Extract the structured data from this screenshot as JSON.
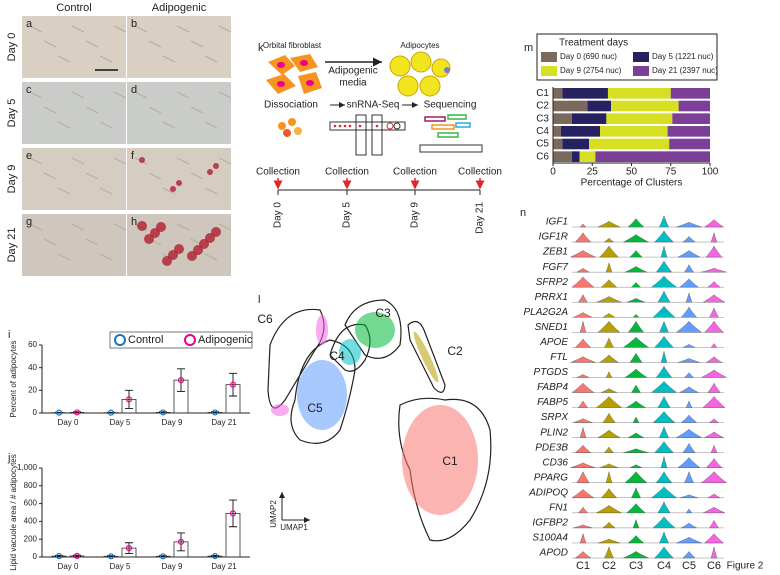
{
  "figure_label": "Figure 2",
  "panel_a_h": {
    "columns": [
      "Control",
      "Adipogenic"
    ],
    "rows": [
      "Day 0",
      "Day 5",
      "Day 9",
      "Day 21"
    ],
    "letters": [
      "a",
      "b",
      "c",
      "d",
      "e",
      "f",
      "g",
      "h"
    ]
  },
  "panel_k": {
    "letter": "k",
    "cells": [
      "Orbital fibroblast",
      "Adipocytes"
    ],
    "media": [
      "Adipogenic",
      "media"
    ],
    "steps": [
      "Dissociation",
      "snRNA-Seq",
      "Sequencing"
    ],
    "collection": [
      "Collection",
      "Collection",
      "Collection",
      "Collection"
    ],
    "days": [
      "Day 0",
      "Day 5",
      "Day 9",
      "Day 21"
    ]
  },
  "panel_l": {
    "letter": "l",
    "clusters": [
      "C1",
      "C2",
      "C3",
      "C4",
      "C5",
      "C6"
    ],
    "axes": [
      "UMAP2",
      "UMAP1"
    ]
  },
  "panel_n": {
    "letter": "n",
    "genes": [
      "IGF1",
      "IGF1R",
      "ZEB1",
      "FGF7",
      "SFRP2",
      "PRRX1",
      "PLA2G2A",
      "SNED1",
      "APOE",
      "FTL",
      "PTGDS",
      "FABP4",
      "FABP5",
      "SRPX",
      "PLIN2",
      "PDE3B",
      "CD36",
      "PPARG",
      "ADIPOQ",
      "FN1",
      "IGFBP2",
      "S100A4",
      "APOD"
    ],
    "clusters": [
      "C1",
      "C2",
      "C3",
      "C4",
      "C5",
      "C6"
    ],
    "colors": [
      "#f8766d",
      "#b79f00",
      "#00ba38",
      "#00bfc4",
      "#619cff",
      "#f564e3"
    ]
  },
  "chart_data": [
    {
      "type": "bar",
      "letter": "i",
      "ylabel": "Percent of adipocytes",
      "categories": [
        "Day 0",
        "Day 5",
        "Day 9",
        "Day 21"
      ],
      "series": [
        {
          "name": "Control",
          "color": "#1c75bc",
          "values": [
            0.3,
            0.3,
            0.5,
            0.5
          ],
          "errors": [
            0.3,
            0.3,
            0.5,
            0.5
          ]
        },
        {
          "name": "Adipogenic",
          "color": "#ec008c",
          "values": [
            0.5,
            12,
            29,
            25
          ],
          "errors": [
            0.5,
            8,
            10,
            10
          ]
        }
      ],
      "ylim": [
        0,
        60
      ],
      "yticks": [
        0,
        20,
        40,
        60
      ]
    },
    {
      "type": "bar",
      "letter": "j",
      "ylabel": "Lipid vacuole area / # adipocytes",
      "categories": [
        "Day 0",
        "Day 5",
        "Day 9",
        "Day 21"
      ],
      "series": [
        {
          "name": "Control",
          "color": "#1c75bc",
          "values": [
            10,
            8,
            8,
            10
          ],
          "errors": [
            8,
            6,
            6,
            8
          ]
        },
        {
          "name": "Adipogenic",
          "color": "#ec008c",
          "values": [
            12,
            100,
            170,
            490
          ],
          "errors": [
            8,
            60,
            100,
            150
          ]
        }
      ],
      "ylim": [
        0,
        1000
      ],
      "yticks": [
        0,
        200,
        400,
        600,
        800,
        {
          "value": 1000,
          "label": "1,000"
        }
      ]
    },
    {
      "type": "stacked_bar_h",
      "letter": "m",
      "legend_title": "Treatment days",
      "xlabel": "Percentage of Clusters",
      "categories": [
        "C1",
        "C2",
        "C3",
        "C4",
        "C5",
        "C6"
      ],
      "series": [
        {
          "name": "Day 0 (690 nuc)",
          "color": "#7a6a5d",
          "values": [
            6,
            22,
            12,
            5,
            6,
            12
          ]
        },
        {
          "name": "Day 5 (1221 nuc)",
          "color": "#262262",
          "values": [
            29,
            15,
            22,
            25,
            17,
            5
          ]
        },
        {
          "name": "Day 9 (2754 nuc)",
          "color": "#d7df23",
          "values": [
            40,
            43,
            42,
            43,
            51,
            10
          ]
        },
        {
          "name": "Day 21 (2397 nuc)",
          "color": "#7b3f98",
          "values": [
            25,
            20,
            24,
            27,
            26,
            73
          ]
        }
      ],
      "xlim": [
        0,
        100
      ],
      "xticks": [
        0,
        25,
        50,
        75,
        100
      ]
    }
  ]
}
